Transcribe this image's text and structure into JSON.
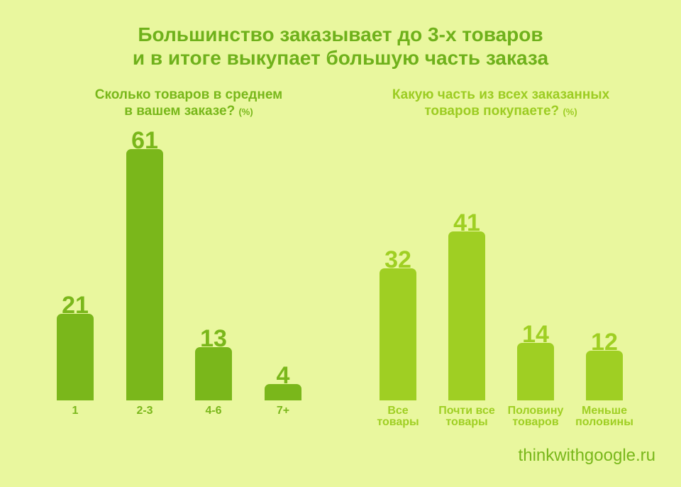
{
  "title_line1": "Большинство заказывает до 3-х товаров",
  "title_line2": "и в итоге выкупает большую часть заказа",
  "source": "thinkwithgoogle.ru",
  "chart_data": [
    {
      "type": "bar",
      "title_line1": "Сколько товаров в среднем",
      "title_line2": "в вашем заказе?",
      "unit": "(%)",
      "categories": [
        "1",
        "2-3",
        "4-6",
        "7+"
      ],
      "values": [
        21,
        61,
        13,
        4
      ],
      "color": "#7ab71b",
      "grid": false
    },
    {
      "type": "bar",
      "title_line1": "Какую часть из всех заказанных",
      "title_line2": "товаров покупаете?",
      "unit": "(%)",
      "categories": [
        "Все\nтовары",
        "Почти все\nтовары",
        "Половину\nтоваров",
        "Меньше\nполовины"
      ],
      "values": [
        32,
        41,
        14,
        12
      ],
      "color": "#9fcf23",
      "grid": false
    }
  ]
}
